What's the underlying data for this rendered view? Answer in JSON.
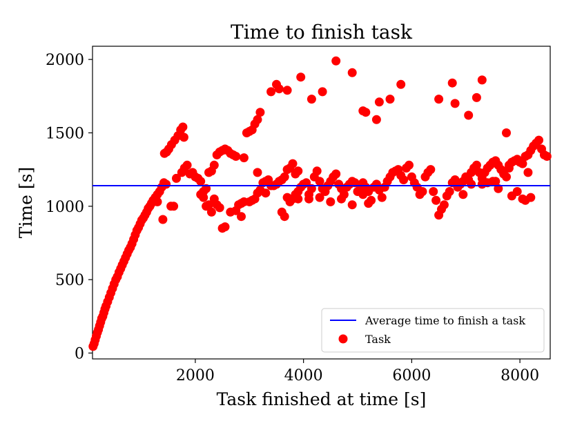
{
  "chart_data": {
    "type": "scatter",
    "title": "Time to finish task",
    "xlabel": "Task finished at time [s]",
    "ylabel": "Time [s]",
    "xlim": [
      100,
      8560
    ],
    "ylim": [
      -40,
      2090
    ],
    "xticks": [
      2000,
      4000,
      6000,
      8000
    ],
    "yticks": [
      0,
      500,
      1000,
      1500,
      2000
    ],
    "grid": false,
    "legend_position": "lower-right",
    "series": [
      {
        "name": "Task",
        "kind": "scatter",
        "color": "#ff0000",
        "points": [
          [
            110,
            45
          ],
          [
            130,
            65
          ],
          [
            150,
            90
          ],
          [
            170,
            115
          ],
          [
            190,
            140
          ],
          [
            210,
            160
          ],
          [
            230,
            185
          ],
          [
            250,
            210
          ],
          [
            270,
            235
          ],
          [
            290,
            250
          ],
          [
            310,
            275
          ],
          [
            330,
            300
          ],
          [
            350,
            320
          ],
          [
            380,
            350
          ],
          [
            410,
            380
          ],
          [
            440,
            410
          ],
          [
            470,
            440
          ],
          [
            500,
            470
          ],
          [
            530,
            500
          ],
          [
            560,
            520
          ],
          [
            590,
            550
          ],
          [
            620,
            575
          ],
          [
            650,
            600
          ],
          [
            680,
            625
          ],
          [
            710,
            650
          ],
          [
            740,
            675
          ],
          [
            770,
            700
          ],
          [
            800,
            720
          ],
          [
            830,
            745
          ],
          [
            860,
            775
          ],
          [
            890,
            805
          ],
          [
            920,
            835
          ],
          [
            950,
            855
          ],
          [
            980,
            880
          ],
          [
            1010,
            905
          ],
          [
            1040,
            920
          ],
          [
            1070,
            940
          ],
          [
            1100,
            960
          ],
          [
            1130,
            985
          ],
          [
            1160,
            1000
          ],
          [
            1190,
            1020
          ],
          [
            1220,
            1040
          ],
          [
            1260,
            1060
          ],
          [
            1300,
            1080
          ],
          [
            1340,
            1100
          ],
          [
            1380,
            1130
          ],
          [
            1420,
            1160
          ],
          [
            1460,
            1150
          ],
          [
            1400,
            910
          ],
          [
            1300,
            1030
          ],
          [
            1430,
            1360
          ],
          [
            1470,
            1370
          ],
          [
            1510,
            1390
          ],
          [
            1560,
            1420
          ],
          [
            1620,
            1450
          ],
          [
            1680,
            1480
          ],
          [
            1730,
            1520
          ],
          [
            1770,
            1540
          ],
          [
            1790,
            1470
          ],
          [
            1750,
            1230
          ],
          [
            1800,
            1260
          ],
          [
            1850,
            1280
          ],
          [
            1900,
            1220
          ],
          [
            1950,
            1230
          ],
          [
            2000,
            1200
          ],
          [
            2050,
            1190
          ],
          [
            2100,
            1170
          ],
          [
            2150,
            1100
          ],
          [
            2200,
            1120
          ],
          [
            2250,
            1230
          ],
          [
            2300,
            1240
          ],
          [
            2350,
            1280
          ],
          [
            2400,
            1350
          ],
          [
            2450,
            1370
          ],
          [
            2500,
            1380
          ],
          [
            2550,
            1390
          ],
          [
            2600,
            1380
          ],
          [
            2650,
            1360
          ],
          [
            2700,
            1350
          ],
          [
            2750,
            1340
          ],
          [
            2500,
            850
          ],
          [
            2550,
            860
          ],
          [
            2450,
            990
          ],
          [
            2400,
            1010
          ],
          [
            2350,
            1050
          ],
          [
            2300,
            960
          ],
          [
            2250,
            1010
          ],
          [
            2200,
            1000
          ],
          [
            2150,
            1060
          ],
          [
            2100,
            1080
          ],
          [
            2900,
            1330
          ],
          [
            2950,
            1500
          ],
          [
            3000,
            1510
          ],
          [
            3050,
            1520
          ],
          [
            3100,
            1560
          ],
          [
            3150,
            1590
          ],
          [
            3200,
            1640
          ],
          [
            3000,
            1030
          ],
          [
            2900,
            1030
          ],
          [
            2800,
            1010
          ],
          [
            2850,
            930
          ],
          [
            2750,
            970
          ],
          [
            2650,
            960
          ],
          [
            3100,
            1050
          ],
          [
            3150,
            1090
          ],
          [
            3200,
            1110
          ],
          [
            3250,
            1160
          ],
          [
            3300,
            1170
          ],
          [
            3350,
            1180
          ],
          [
            3400,
            1140
          ],
          [
            3450,
            1140
          ],
          [
            3500,
            1150
          ],
          [
            3550,
            1170
          ],
          [
            3600,
            1180
          ],
          [
            3650,
            1200
          ],
          [
            3700,
            1250
          ],
          [
            3750,
            1260
          ],
          [
            3800,
            1290
          ],
          [
            3850,
            1220
          ],
          [
            3900,
            1240
          ],
          [
            3400,
            1780
          ],
          [
            3500,
            1830
          ],
          [
            3550,
            1800
          ],
          [
            3700,
            1790
          ],
          [
            3950,
            1880
          ],
          [
            4150,
            1730
          ],
          [
            4350,
            1780
          ],
          [
            4600,
            1990
          ],
          [
            4900,
            1910
          ],
          [
            5100,
            1650
          ],
          [
            5150,
            1640
          ],
          [
            5350,
            1590
          ],
          [
            5400,
            1710
          ],
          [
            5600,
            1730
          ],
          [
            5800,
            1830
          ],
          [
            6500,
            1730
          ],
          [
            6750,
            1840
          ],
          [
            6800,
            1700
          ],
          [
            7050,
            1620
          ],
          [
            7200,
            1740
          ],
          [
            7300,
            1860
          ],
          [
            3600,
            960
          ],
          [
            3650,
            930
          ],
          [
            3700,
            1060
          ],
          [
            3750,
            1030
          ],
          [
            3800,
            1050
          ],
          [
            3850,
            1080
          ],
          [
            3900,
            1100
          ],
          [
            3950,
            1130
          ],
          [
            4000,
            1150
          ],
          [
            4050,
            1160
          ],
          [
            4100,
            1080
          ],
          [
            4150,
            1120
          ],
          [
            4200,
            1200
          ],
          [
            4250,
            1240
          ],
          [
            4300,
            1170
          ],
          [
            4350,
            1120
          ],
          [
            4400,
            1100
          ],
          [
            4450,
            1140
          ],
          [
            4500,
            1170
          ],
          [
            4550,
            1200
          ],
          [
            4600,
            1220
          ],
          [
            4650,
            1150
          ],
          [
            4700,
            1120
          ],
          [
            4750,
            1080
          ],
          [
            4800,
            1130
          ],
          [
            4850,
            1150
          ],
          [
            4900,
            1170
          ],
          [
            4950,
            1160
          ],
          [
            5000,
            1100
          ],
          [
            5050,
            1120
          ],
          [
            5100,
            1160
          ],
          [
            5150,
            1130
          ],
          [
            5200,
            1020
          ],
          [
            5250,
            1040
          ],
          [
            5300,
            1130
          ],
          [
            5350,
            1150
          ],
          [
            5400,
            1110
          ],
          [
            5450,
            1060
          ],
          [
            5500,
            1130
          ],
          [
            5550,
            1170
          ],
          [
            5600,
            1200
          ],
          [
            5650,
            1230
          ],
          [
            5700,
            1240
          ],
          [
            5750,
            1250
          ],
          [
            5800,
            1210
          ],
          [
            5850,
            1180
          ],
          [
            5900,
            1260
          ],
          [
            5950,
            1280
          ],
          [
            6000,
            1200
          ],
          [
            6050,
            1160
          ],
          [
            6100,
            1130
          ],
          [
            6150,
            1080
          ],
          [
            6200,
            1100
          ],
          [
            6250,
            1200
          ],
          [
            6300,
            1230
          ],
          [
            6350,
            1250
          ],
          [
            6400,
            1100
          ],
          [
            6450,
            1040
          ],
          [
            6500,
            940
          ],
          [
            6550,
            980
          ],
          [
            6600,
            1010
          ],
          [
            6650,
            1070
          ],
          [
            6700,
            1100
          ],
          [
            6750,
            1160
          ],
          [
            6800,
            1180
          ],
          [
            6850,
            1130
          ],
          [
            6900,
            1150
          ],
          [
            6950,
            1170
          ],
          [
            7000,
            1200
          ],
          [
            7050,
            1180
          ],
          [
            7100,
            1230
          ],
          [
            7150,
            1260
          ],
          [
            7200,
            1280
          ],
          [
            7250,
            1230
          ],
          [
            7300,
            1190
          ],
          [
            7350,
            1230
          ],
          [
            7400,
            1260
          ],
          [
            7450,
            1280
          ],
          [
            7500,
            1300
          ],
          [
            7550,
            1310
          ],
          [
            7600,
            1280
          ],
          [
            7650,
            1250
          ],
          [
            7700,
            1220
          ],
          [
            7750,
            1200
          ],
          [
            7800,
            1280
          ],
          [
            7850,
            1300
          ],
          [
            7900,
            1310
          ],
          [
            7950,
            1320
          ],
          [
            8000,
            1300
          ],
          [
            8050,
            1290
          ],
          [
            8100,
            1340
          ],
          [
            8150,
            1350
          ],
          [
            8200,
            1380
          ],
          [
            8250,
            1410
          ],
          [
            8300,
            1430
          ],
          [
            8350,
            1450
          ],
          [
            8400,
            1390
          ],
          [
            8450,
            1350
          ],
          [
            8500,
            1340
          ],
          [
            7750,
            1500
          ],
          [
            7800,
            1260
          ],
          [
            7850,
            1070
          ],
          [
            7950,
            1100
          ],
          [
            8050,
            1050
          ],
          [
            8100,
            1040
          ],
          [
            8150,
            1230
          ],
          [
            8200,
            1060
          ],
          [
            6950,
            1080
          ],
          [
            7100,
            1150
          ],
          [
            7300,
            1150
          ],
          [
            7400,
            1160
          ],
          [
            7500,
            1170
          ],
          [
            7550,
            1170
          ],
          [
            7600,
            1120
          ],
          [
            5200,
            1100
          ],
          [
            5100,
            1080
          ],
          [
            4900,
            1010
          ],
          [
            4700,
            1050
          ],
          [
            4500,
            1030
          ],
          [
            4300,
            1060
          ],
          [
            4100,
            1050
          ],
          [
            3900,
            1050
          ],
          [
            3300,
            1090
          ],
          [
            3150,
            1230
          ],
          [
            3050,
            1040
          ],
          [
            2850,
            1020
          ],
          [
            1550,
            1000
          ],
          [
            1600,
            1000
          ],
          [
            1650,
            1190
          ]
        ]
      },
      {
        "name": "Average time to finish a task",
        "kind": "line",
        "color": "#0000ff",
        "value": 1140
      }
    ]
  }
}
